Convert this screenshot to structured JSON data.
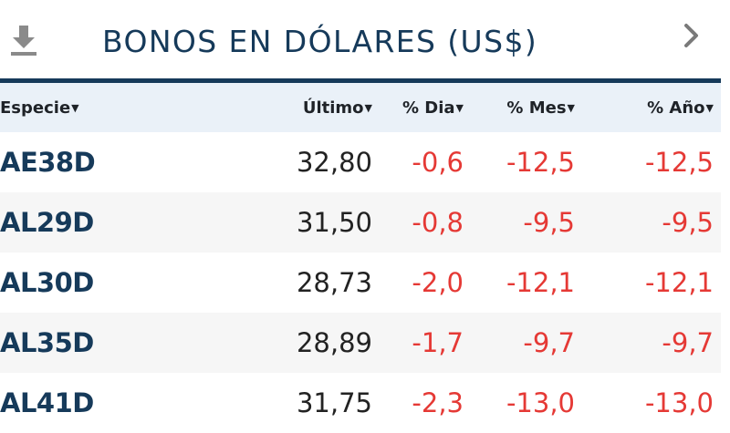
{
  "header": {
    "title": "BONOS EN DÓLARES (US$)",
    "download_icon": "download-icon",
    "next_icon": "chevron-right-icon"
  },
  "table": {
    "columns": [
      "Especie",
      "Último",
      "% Dia",
      "% Mes",
      "% Año"
    ],
    "rows": [
      {
        "especie": "AE38D",
        "ultimo": "32,80",
        "dia": "-0,6",
        "mes": "-12,5",
        "anio": "-12,5"
      },
      {
        "especie": "AL29D",
        "ultimo": "31,50",
        "dia": "-0,8",
        "mes": "-9,5",
        "anio": "-9,5"
      },
      {
        "especie": "AL30D",
        "ultimo": "28,73",
        "dia": "-2,0",
        "mes": "-12,1",
        "anio": "-12,1"
      },
      {
        "especie": "AL35D",
        "ultimo": "28,89",
        "dia": "-1,7",
        "mes": "-9,7",
        "anio": "-9,7"
      },
      {
        "especie": "AL41D",
        "ultimo": "31,75",
        "dia": "-2,3",
        "mes": "-13,0",
        "anio": "-13,0"
      }
    ]
  },
  "colors": {
    "brand": "#163a5a",
    "negative": "#e53935",
    "header_bg": "#eaf1f8"
  }
}
